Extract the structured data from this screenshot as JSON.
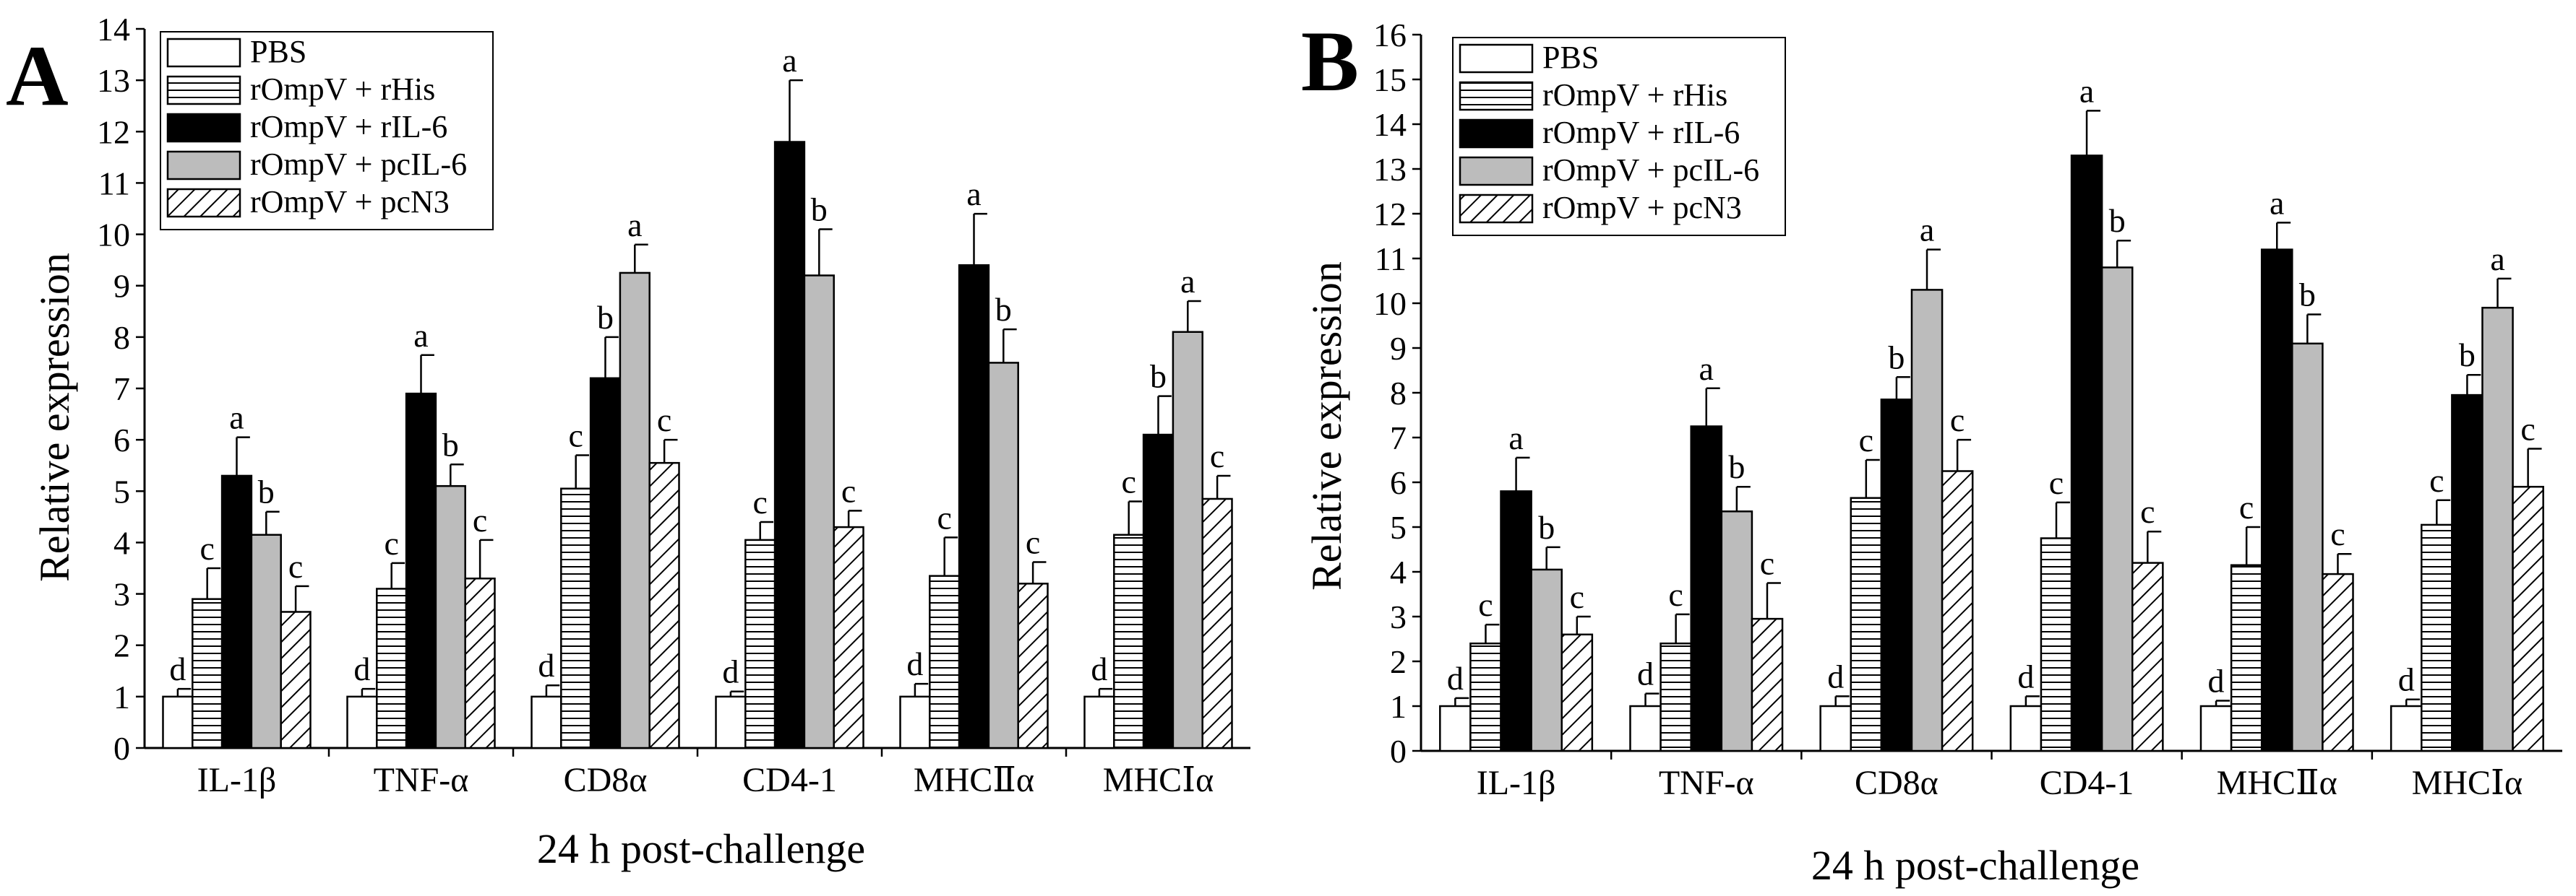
{
  "chart_data": [
    {
      "type": "bar",
      "panel_label": "A",
      "categories": [
        "IL-1β",
        "TNF-α",
        "CD8α",
        "CD4-1",
        "MHCⅡα",
        "MHCⅠα"
      ],
      "xlabel": "24 h post-challenge",
      "ylabel": "Relative expression",
      "ylim": [
        0,
        14
      ],
      "ytick_step": 1,
      "legend_position": "top-left",
      "series": [
        {
          "name": "PBS",
          "pattern": "white",
          "values": [
            1.0,
            1.0,
            1.0,
            1.0,
            1.0,
            1.0
          ],
          "errors": [
            0.15,
            0.15,
            0.22,
            0.1,
            0.25,
            0.15
          ],
          "letters": [
            "d",
            "d",
            "d",
            "d",
            "d",
            "d"
          ]
        },
        {
          "name": "rOmpV + rHis",
          "pattern": "hlines",
          "values": [
            2.9,
            3.1,
            5.05,
            4.05,
            3.35,
            4.15
          ],
          "errors": [
            0.6,
            0.5,
            0.65,
            0.35,
            0.75,
            0.65
          ],
          "letters": [
            "c",
            "c",
            "c",
            "c",
            "c",
            "c"
          ]
        },
        {
          "name": "rOmpV + rIL-6",
          "pattern": "black",
          "values": [
            5.3,
            6.9,
            7.2,
            11.8,
            9.4,
            6.1
          ],
          "errors": [
            0.75,
            0.75,
            0.8,
            1.2,
            1.0,
            0.75
          ],
          "letters": [
            "a",
            "a",
            "b",
            "a",
            "a",
            "b"
          ]
        },
        {
          "name": "rOmpV + pcIL-6",
          "pattern": "gray",
          "values": [
            4.15,
            5.1,
            9.25,
            9.2,
            7.5,
            8.1
          ],
          "errors": [
            0.45,
            0.42,
            0.55,
            0.9,
            0.65,
            0.6
          ],
          "letters": [
            "b",
            "b",
            "a",
            "b",
            "b",
            "a"
          ]
        },
        {
          "name": "rOmpV + pcN3",
          "pattern": "diag",
          "values": [
            2.65,
            3.3,
            5.55,
            4.3,
            3.2,
            4.85
          ],
          "errors": [
            0.5,
            0.75,
            0.45,
            0.32,
            0.42,
            0.45
          ],
          "letters": [
            "c",
            "c",
            "c",
            "c",
            "c",
            "c"
          ]
        }
      ]
    },
    {
      "type": "bar",
      "panel_label": "B",
      "categories": [
        "IL-1β",
        "TNF-α",
        "CD8α",
        "CD4-1",
        "MHCⅡα",
        "MHCⅠα"
      ],
      "xlabel": "24 h post-challenge",
      "ylabel": "Relative expression",
      "ylim": [
        0,
        16
      ],
      "ytick_step": 1,
      "legend_position": "top-left",
      "series": [
        {
          "name": "PBS",
          "pattern": "white",
          "values": [
            1.0,
            1.0,
            1.0,
            1.0,
            1.0,
            1.0
          ],
          "errors": [
            0.18,
            0.28,
            0.22,
            0.22,
            0.12,
            0.15
          ],
          "letters": [
            "d",
            "d",
            "d",
            "d",
            "d",
            "d"
          ]
        },
        {
          "name": "rOmpV + rHis",
          "pattern": "hlines",
          "values": [
            2.4,
            2.4,
            5.65,
            4.75,
            4.15,
            5.05
          ],
          "errors": [
            0.42,
            0.65,
            0.85,
            0.8,
            0.85,
            0.55
          ],
          "letters": [
            "c",
            "c",
            "c",
            "c",
            "c",
            "c"
          ]
        },
        {
          "name": "rOmpV + rIL-6",
          "pattern": "black",
          "values": [
            5.8,
            7.25,
            7.85,
            13.3,
            11.2,
            7.95
          ],
          "errors": [
            0.75,
            0.85,
            0.5,
            1.0,
            0.6,
            0.45
          ],
          "letters": [
            "a",
            "a",
            "b",
            "a",
            "a",
            "b"
          ]
        },
        {
          "name": "rOmpV + pcIL-6",
          "pattern": "gray",
          "values": [
            4.05,
            5.35,
            10.3,
            10.8,
            9.1,
            9.9
          ],
          "errors": [
            0.5,
            0.55,
            0.9,
            0.6,
            0.65,
            0.65
          ],
          "letters": [
            "b",
            "b",
            "a",
            "b",
            "b",
            "a"
          ]
        },
        {
          "name": "rOmpV + pcN3",
          "pattern": "diag",
          "values": [
            2.6,
            2.95,
            6.25,
            4.2,
            3.95,
            5.9
          ],
          "errors": [
            0.4,
            0.8,
            0.7,
            0.7,
            0.45,
            0.85
          ],
          "letters": [
            "c",
            "c",
            "c",
            "c",
            "c",
            "c"
          ]
        }
      ]
    }
  ]
}
